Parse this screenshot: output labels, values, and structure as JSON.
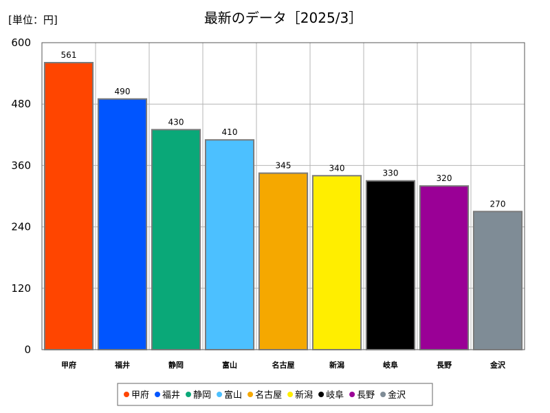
{
  "unit_label": "[単位：円]",
  "chart_data": {
    "type": "bar",
    "title": "最新のデータ［2025/3］",
    "xlabel": "",
    "ylabel": "",
    "ylim": [
      0,
      600
    ],
    "yticks": [
      0,
      120,
      240,
      360,
      480,
      600
    ],
    "grid": true,
    "legend_position": "bottom",
    "categories": [
      "甲府",
      "福井",
      "静岡",
      "富山",
      "名古屋",
      "新潟",
      "岐阜",
      "長野",
      "金沢"
    ],
    "values": [
      561,
      490,
      430,
      410,
      345,
      340,
      330,
      320,
      270
    ],
    "colors": [
      "#ff4500",
      "#0055ff",
      "#0aa878",
      "#4cc0ff",
      "#f5a800",
      "#ffee00",
      "#000000",
      "#9a0096",
      "#7f8c96"
    ]
  }
}
